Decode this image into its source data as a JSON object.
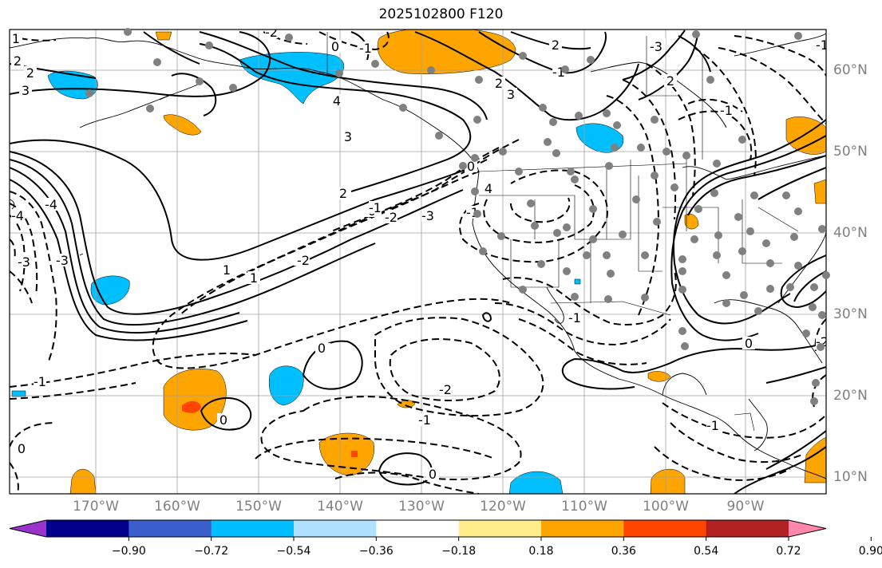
{
  "title": "2025102800 F120",
  "map": {
    "lon_labels": [
      "170°W",
      "160°W",
      "150°W",
      "140°W",
      "130°W",
      "120°W",
      "110°W",
      "100°W",
      "90°W"
    ],
    "lat_labels": [
      "60°N",
      "50°N",
      "40°N",
      "30°N",
      "20°N",
      "10°N"
    ],
    "contour_labels": [
      "1",
      "2",
      "2",
      "3",
      "-2",
      "-1",
      "0",
      "-1",
      "2",
      "3",
      "4",
      "3",
      "2",
      "2",
      "2",
      "0",
      "1",
      "2",
      "2",
      "1",
      "0",
      "-1",
      "-2",
      "-3",
      "-1",
      "0",
      "-4",
      "-3",
      "4",
      "-4",
      "-1",
      "-2",
      "-1",
      "0",
      "0",
      "0",
      "0",
      "-1",
      "-1",
      "-3",
      "-3",
      "-2",
      "-2",
      "-1",
      "0",
      "-1"
    ]
  },
  "colorbar": {
    "ticks": [
      "−0.90",
      "−0.72",
      "−0.54",
      "−0.36",
      "−0.18",
      "0.18",
      "0.36",
      "0.54",
      "0.72",
      "0.90"
    ],
    "colors": [
      "#9933cc",
      "#00008b",
      "#3a5fcd",
      "#00bfff",
      "#b0e2ff",
      "#ffffff",
      "#ffec8b",
      "#ffa500",
      "#ff4500",
      "#b22222",
      "#ff88aa"
    ]
  }
}
